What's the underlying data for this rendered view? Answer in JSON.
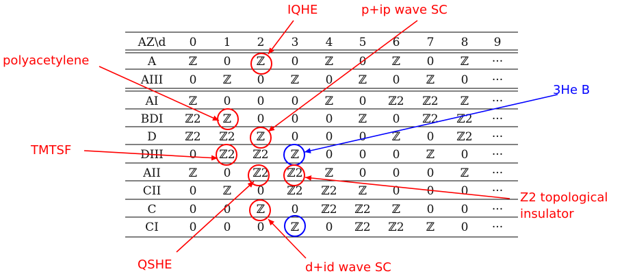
{
  "table": {
    "corner": "AZ\\d",
    "columns": [
      "0",
      "1",
      "2",
      "3",
      "4",
      "5",
      "6",
      "7",
      "8",
      "9"
    ],
    "rows": [
      {
        "name": "A",
        "cells": [
          "ℤ",
          "0",
          "ℤ",
          "0",
          "ℤ",
          "0",
          "ℤ",
          "0",
          "ℤ",
          "···"
        ]
      },
      {
        "name": "AIII",
        "cells": [
          "0",
          "ℤ",
          "0",
          "ℤ",
          "0",
          "ℤ",
          "0",
          "ℤ",
          "0",
          "···"
        ]
      },
      {
        "name": "AI",
        "cells": [
          "ℤ",
          "0",
          "0",
          "0",
          "ℤ",
          "0",
          "ℤ2",
          "ℤ2",
          "ℤ",
          "···"
        ]
      },
      {
        "name": "BDI",
        "cells": [
          "ℤ2",
          "ℤ",
          "0",
          "0",
          "0",
          "ℤ",
          "0",
          "ℤ2",
          "ℤ2",
          "···"
        ]
      },
      {
        "name": "D",
        "cells": [
          "ℤ2",
          "ℤ2",
          "ℤ",
          "0",
          "0",
          "0",
          "ℤ",
          "0",
          "ℤ2",
          "···"
        ]
      },
      {
        "name": "DIII",
        "cells": [
          "0",
          "ℤ2",
          "ℤ2",
          "ℤ",
          "0",
          "0",
          "0",
          "ℤ",
          "0",
          "···"
        ]
      },
      {
        "name": "AII",
        "cells": [
          "ℤ",
          "0",
          "ℤ2",
          "ℤ2",
          "ℤ",
          "0",
          "0",
          "0",
          "ℤ",
          "···"
        ]
      },
      {
        "name": "CII",
        "cells": [
          "0",
          "ℤ",
          "0",
          "ℤ2",
          "ℤ2",
          "ℤ",
          "0",
          "0",
          "0",
          "···"
        ]
      },
      {
        "name": "C",
        "cells": [
          "0",
          "0",
          "ℤ",
          "0",
          "ℤ2",
          "ℤ2",
          "ℤ",
          "0",
          "0",
          "···"
        ]
      },
      {
        "name": "CI",
        "cells": [
          "0",
          "0",
          "0",
          "ℤ",
          "0",
          "ℤ2",
          "ℤ2",
          "ℤ",
          "0",
          "···"
        ]
      }
    ]
  },
  "annotations": [
    {
      "id": "iqhe",
      "text": "IQHE",
      "color": "#ff0000"
    },
    {
      "id": "pip",
      "text": "p+ip wave SC",
      "color": "#ff0000"
    },
    {
      "id": "polyacetylene",
      "text": "polyacetylene",
      "color": "#ff0000"
    },
    {
      "id": "he3b",
      "text": "3He B",
      "color": "#0000ff"
    },
    {
      "id": "tmtsf",
      "text": "TMTSF",
      "color": "#ff0000"
    },
    {
      "id": "z2ti_1",
      "text": "Z2 topological",
      "color": "#ff0000"
    },
    {
      "id": "z2ti_2",
      "text": "insulator",
      "color": "#ff0000"
    },
    {
      "id": "qshe",
      "text": "QSHE",
      "color": "#ff0000"
    },
    {
      "id": "did",
      "text": "d+id wave SC",
      "color": "#ff0000"
    }
  ],
  "colors": {
    "red": "#ff0000",
    "blue": "#0000ff",
    "text": "#111111"
  }
}
